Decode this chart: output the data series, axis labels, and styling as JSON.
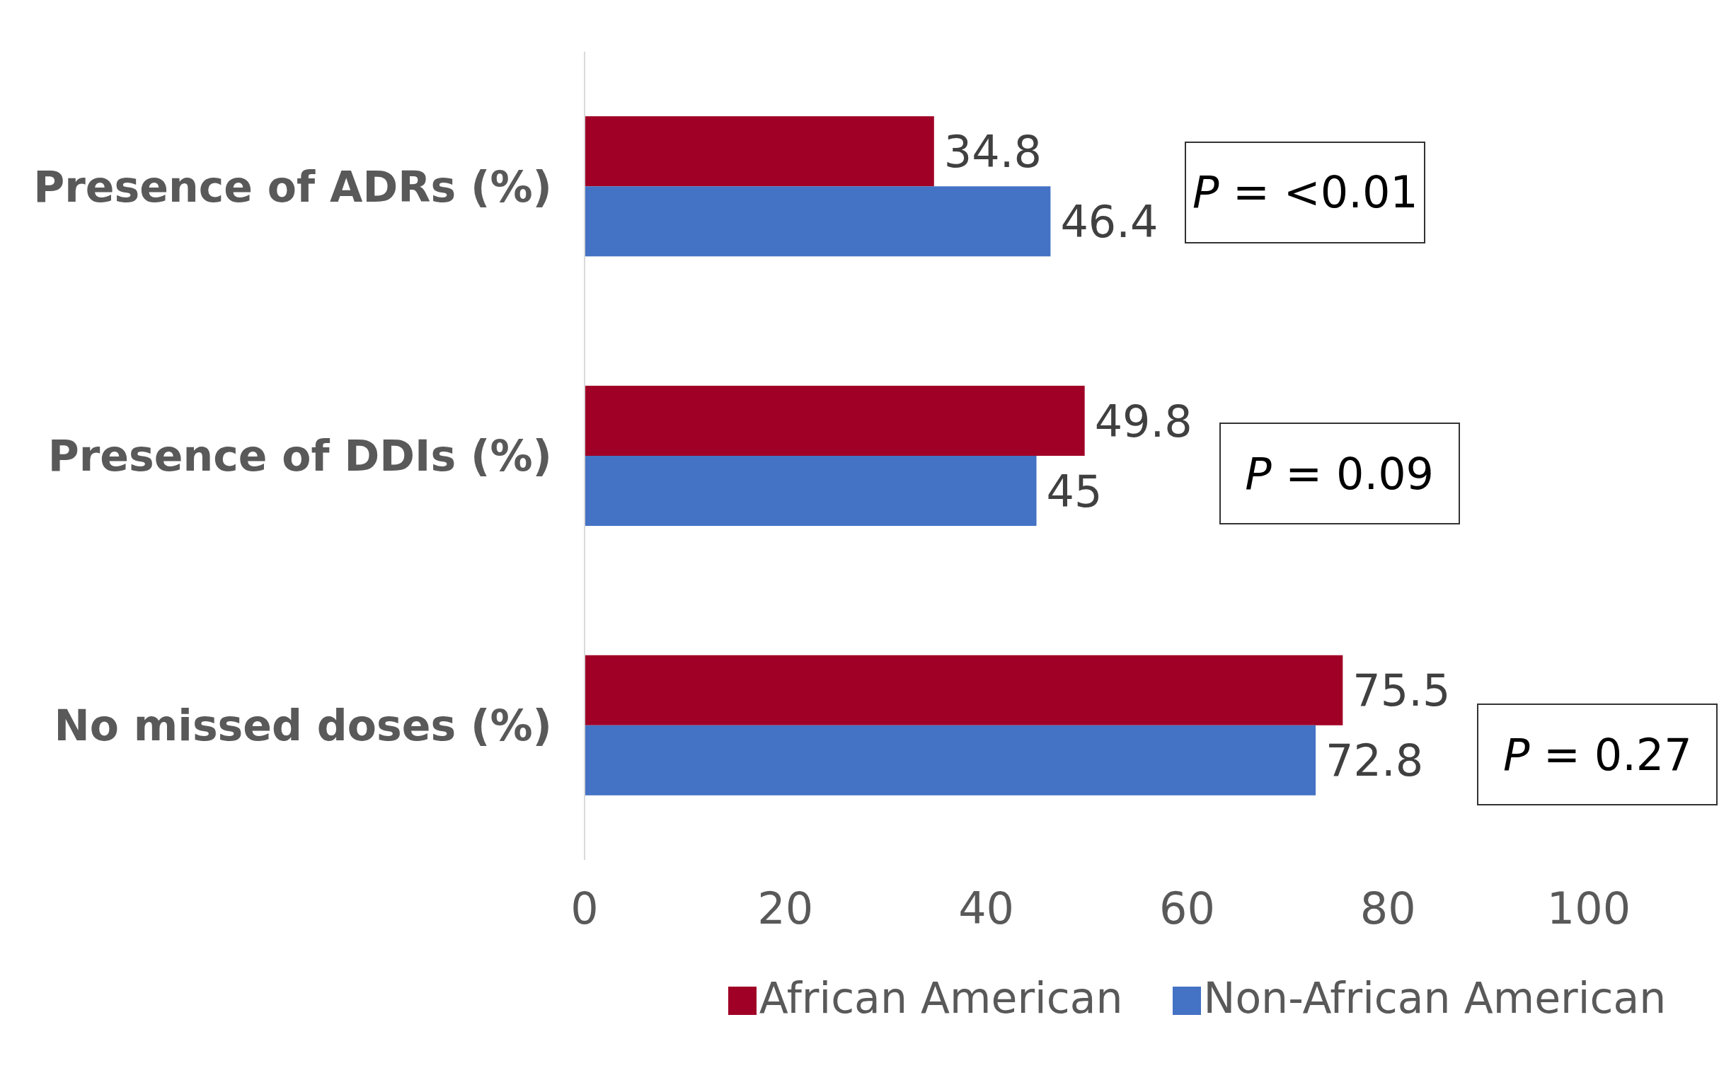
{
  "chart_data": {
    "type": "bar",
    "orientation": "horizontal",
    "categories": [
      "Presence of ADRs (%)",
      "Presence of DDIs (%)",
      "No missed doses (%)"
    ],
    "series": [
      {
        "name": "African American",
        "color": "#a00026",
        "values": [
          34.8,
          49.8,
          75.5
        ]
      },
      {
        "name": "Non-African American",
        "color": "#4472c4",
        "values": [
          46.4,
          45,
          72.8
        ]
      }
    ],
    "xlim": [
      0,
      100
    ],
    "xticks": [
      0,
      20,
      40,
      60,
      80,
      100
    ],
    "data_labels": true,
    "legend": "bottom",
    "grid": false,
    "annotations": [
      "P = <0.01",
      "P = 0.09",
      "P = 0.27"
    ]
  }
}
